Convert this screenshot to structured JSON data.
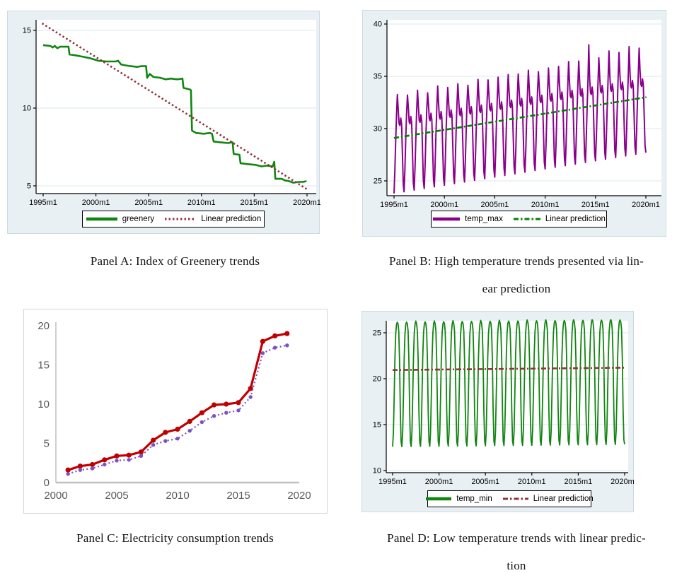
{
  "captions": {
    "panel_a": "Panel A: Index of Greenery trends",
    "panel_b_line1": "Panel B: High temperature trends presented via lin-",
    "panel_b_line2": "ear prediction",
    "panel_c": "Panel C: Electricity consumption trends",
    "panel_d_line1": "Panel D: Low temperature trends with linear predic-",
    "panel_d_line2": "tion"
  },
  "colors": {
    "stata_background": "#e9f0f4",
    "gridline": "#dbe7ee",
    "greenery_green": "#108510",
    "maroon": "#90353b",
    "temp_purple": "#8b008b",
    "prediction_green": "#008000",
    "electric_red": "#c00000",
    "electric_violet": "#7a52c2",
    "excel_axis": "#bfbfbf",
    "excel_label": "#595959"
  },
  "chart_data": [
    {
      "id": "panel-a",
      "type": "line",
      "style": "stata",
      "title": "",
      "xlabel": "",
      "ylabel": "",
      "grid": true,
      "x_ticks": [
        {
          "x": 1995,
          "label": "1995m1"
        },
        {
          "x": 2000,
          "label": "2000m1"
        },
        {
          "x": 2005,
          "label": "2005m1"
        },
        {
          "x": 2010,
          "label": "2010m1"
        },
        {
          "x": 2015,
          "label": "2015m1"
        },
        {
          "x": 2020,
          "label": "2020m1"
        }
      ],
      "y_ticks": [
        {
          "v": 5,
          "label": "5"
        },
        {
          "v": 10,
          "label": "10"
        },
        {
          "v": 15,
          "label": "15"
        }
      ],
      "xlim": [
        1994.3,
        2020.9
      ],
      "ylim": [
        4.5,
        15.7
      ],
      "series": [
        {
          "name": "greenery",
          "color": "#108510",
          "width": 2.6,
          "dash": "",
          "points": [
            [
              1995.0,
              14.05
            ],
            [
              1995.7,
              14.0
            ],
            [
              1995.9,
              13.9
            ],
            [
              1996.1,
              14.0
            ],
            [
              1996.35,
              13.85
            ],
            [
              1996.6,
              13.95
            ],
            [
              1997.4,
              13.95
            ],
            [
              1997.5,
              13.45
            ],
            [
              1998.0,
              13.4
            ],
            [
              1998.8,
              13.3
            ],
            [
              1999.5,
              13.2
            ],
            [
              2000.2,
              13.05
            ],
            [
              2001.0,
              13.0
            ],
            [
              2001.9,
              13.0
            ],
            [
              2002.1,
              13.05
            ],
            [
              2002.4,
              12.8
            ],
            [
              2002.8,
              12.75
            ],
            [
              2003.3,
              12.7
            ],
            [
              2003.9,
              12.65
            ],
            [
              2004.3,
              12.7
            ],
            [
              2004.75,
              12.7
            ],
            [
              2004.85,
              11.95
            ],
            [
              2005.1,
              12.2
            ],
            [
              2005.45,
              12.0
            ],
            [
              2006.1,
              11.95
            ],
            [
              2006.6,
              11.85
            ],
            [
              2007.1,
              11.9
            ],
            [
              2007.7,
              11.85
            ],
            [
              2008.2,
              11.9
            ],
            [
              2008.3,
              11.3
            ],
            [
              2008.9,
              11.2
            ],
            [
              2009.0,
              11.15
            ],
            [
              2009.1,
              8.55
            ],
            [
              2009.5,
              8.4
            ],
            [
              2010.2,
              8.35
            ],
            [
              2010.8,
              8.4
            ],
            [
              2011.0,
              8.35
            ],
            [
              2011.15,
              7.85
            ],
            [
              2011.8,
              7.8
            ],
            [
              2012.5,
              7.75
            ],
            [
              2012.95,
              7.8
            ],
            [
              2013.05,
              7.05
            ],
            [
              2013.6,
              7.0
            ],
            [
              2013.7,
              6.45
            ],
            [
              2014.3,
              6.4
            ],
            [
              2015.1,
              6.35
            ],
            [
              2015.7,
              6.25
            ],
            [
              2016.2,
              6.3
            ],
            [
              2016.75,
              6.25
            ],
            [
              2016.9,
              6.55
            ],
            [
              2017.0,
              5.45
            ],
            [
              2017.6,
              5.45
            ],
            [
              2017.9,
              5.35
            ],
            [
              2018.3,
              5.3
            ],
            [
              2018.7,
              5.2
            ],
            [
              2019.2,
              5.25
            ],
            [
              2019.6,
              5.25
            ],
            [
              2019.95,
              5.3
            ]
          ]
        },
        {
          "name": "Linear prediction",
          "color": "#90353b",
          "width": 2.6,
          "dash": "2.5,3.2",
          "points": [
            [
              1994.9,
              15.45
            ],
            [
              2020.15,
              4.72
            ]
          ]
        }
      ],
      "legend": [
        {
          "label": "greenery",
          "swatch": "solid",
          "color": "#108510"
        },
        {
          "label": "Linear prediction",
          "swatch": "dotted",
          "color": "#90353b"
        }
      ]
    },
    {
      "id": "panel-b",
      "type": "line",
      "style": "stata",
      "title": "",
      "xlabel": "",
      "ylabel": "",
      "grid": true,
      "x_ticks": [
        {
          "x": 1995,
          "label": "1995m1"
        },
        {
          "x": 2000,
          "label": "2000m1"
        },
        {
          "x": 2005,
          "label": "2005m1"
        },
        {
          "x": 2010,
          "label": "2010m1"
        },
        {
          "x": 2015,
          "label": "2015m1"
        },
        {
          "x": 2020,
          "label": "2020m1"
        }
      ],
      "y_ticks": [
        {
          "v": 25,
          "label": "25"
        },
        {
          "v": 30,
          "label": "30"
        },
        {
          "v": 35,
          "label": "35"
        },
        {
          "v": 40,
          "label": "40"
        }
      ],
      "xlim": [
        1994.3,
        2020.9
      ],
      "ylim": [
        23.5,
        40.5
      ],
      "series": [
        {
          "name": "temp_max",
          "color": "#8b008b",
          "width": 2,
          "dash": "",
          "seasonal": {
            "start_year": 1995,
            "years": 25,
            "trend_start": 29.2,
            "trend_end": 33.1,
            "monthly_offsets": [
              -5.4,
              -3.2,
              -0.3,
              2.2,
              3.9,
              2.6,
              1.2,
              1.0,
              1.7,
              1.1,
              -1.8,
              -4.7
            ],
            "peak_month": 4,
            "peak_extra": [
              0.1,
              -0.1,
              0.2,
              -0.2,
              0.3,
              0.0,
              0.2,
              -0.1,
              0.3,
              0.1,
              0.2,
              0.3,
              0.2,
              0.4,
              0.1,
              0.3,
              0.3,
              0.6,
              0.5,
              1.9,
              0.5,
              1.0,
              0.7,
              1.1,
              0.8
            ]
          }
        },
        {
          "name": "Linear prediction",
          "color": "#008000",
          "width": 2.6,
          "dash": "7,3,2,3",
          "points": [
            [
              1995.0,
              29.1
            ],
            [
              2020.05,
              33.0
            ]
          ]
        }
      ],
      "legend": [
        {
          "label": "temp_max",
          "swatch": "solid",
          "color": "#8b008b"
        },
        {
          "label": "Linear prediction",
          "swatch": "dashdot",
          "color": "#008000"
        }
      ]
    },
    {
      "id": "panel-c",
      "type": "line",
      "style": "excel",
      "title": "",
      "xlabel": "",
      "ylabel": "",
      "grid": false,
      "x_ticks": [
        {
          "x": 2000,
          "label": "2000"
        },
        {
          "x": 2005,
          "label": "2005"
        },
        {
          "x": 2010,
          "label": "2010"
        },
        {
          "x": 2015,
          "label": "2015"
        },
        {
          "x": 2020,
          "label": "2020"
        }
      ],
      "y_ticks": [
        {
          "v": 0,
          "label": "0"
        },
        {
          "v": 5,
          "label": "5"
        },
        {
          "v": 10,
          "label": "10"
        },
        {
          "v": 15,
          "label": "15"
        },
        {
          "v": 20,
          "label": "20"
        }
      ],
      "xlim": [
        2000,
        2020
      ],
      "ylim": [
        0,
        20
      ],
      "categories": [
        2001,
        2002,
        2003,
        2004,
        2005,
        2006,
        2007,
        2008,
        2009,
        2010,
        2011,
        2012,
        2013,
        2014,
        2015,
        2016,
        2017,
        2018,
        2019
      ],
      "series": [
        {
          "name": "",
          "color": "#c00000",
          "width": 3.2,
          "dash": "",
          "marker": true,
          "marker_r": 3.6,
          "values": [
            1.6,
            2.1,
            2.3,
            2.9,
            3.4,
            3.5,
            3.9,
            5.4,
            6.4,
            6.8,
            7.8,
            8.9,
            9.9,
            10.0,
            10.2,
            12.0,
            18.0,
            18.7,
            19.0
          ]
        },
        {
          "name": "",
          "color": "#7a52c2",
          "width": 2.2,
          "dash": "2,3.4",
          "marker": true,
          "marker_r": 2.7,
          "values": [
            1.1,
            1.6,
            1.8,
            2.3,
            2.8,
            2.9,
            3.4,
            4.8,
            5.3,
            5.6,
            6.6,
            7.7,
            8.5,
            8.9,
            9.2,
            10.9,
            16.5,
            17.2,
            17.5
          ]
        }
      ],
      "legend": null
    },
    {
      "id": "panel-d",
      "type": "line",
      "style": "stata",
      "title": "",
      "xlabel": "",
      "ylabel": "",
      "grid": true,
      "x_ticks": [
        {
          "x": 1995,
          "label": "1995m1"
        },
        {
          "x": 2000,
          "label": "2000m1"
        },
        {
          "x": 2005,
          "label": "2005m1"
        },
        {
          "x": 2010,
          "label": "2010m1"
        },
        {
          "x": 2015,
          "label": "2015m1"
        },
        {
          "x": 2020,
          "label": "2020m1"
        }
      ],
      "y_ticks": [
        {
          "v": 10,
          "label": "10"
        },
        {
          "v": 15,
          "label": "15"
        },
        {
          "v": 20,
          "label": "20"
        },
        {
          "v": 25,
          "label": "25"
        }
      ],
      "xlim": [
        1994.3,
        2020.9
      ],
      "ylim": [
        9.8,
        26.5
      ],
      "series": [
        {
          "name": "temp_min",
          "color": "#108510",
          "width": 1.8,
          "dash": "",
          "seasonal": {
            "start_year": 1995,
            "years": 25,
            "trend_start": 21.0,
            "trend_end": 21.25,
            "monthly_offsets": [
              -8.4,
              -6.9,
              -3.0,
              1.3,
              3.9,
              4.9,
              5.15,
              4.95,
              4.15,
              1.0,
              -4.6,
              -7.9
            ],
            "peak_month": 6,
            "peak_extra": [
              0,
              0,
              0.1,
              0,
              0.1,
              0,
              0.1,
              0,
              0,
              0.1,
              0,
              0.1,
              0,
              0,
              0.1,
              0,
              0.1,
              0,
              0,
              0.1,
              0,
              0.1,
              0,
              0.1,
              0
            ]
          }
        },
        {
          "name": "Linear prediction",
          "color": "#90353b",
          "width": 2.6,
          "dash": "7,3,2,3",
          "points": [
            [
              1995.0,
              20.95
            ],
            [
              2020.05,
              21.2
            ]
          ]
        }
      ],
      "legend": [
        {
          "label": "temp_min",
          "swatch": "solid",
          "color": "#108510"
        },
        {
          "label": "Linear prediction",
          "swatch": "dashdot",
          "color": "#90353b"
        }
      ]
    }
  ]
}
